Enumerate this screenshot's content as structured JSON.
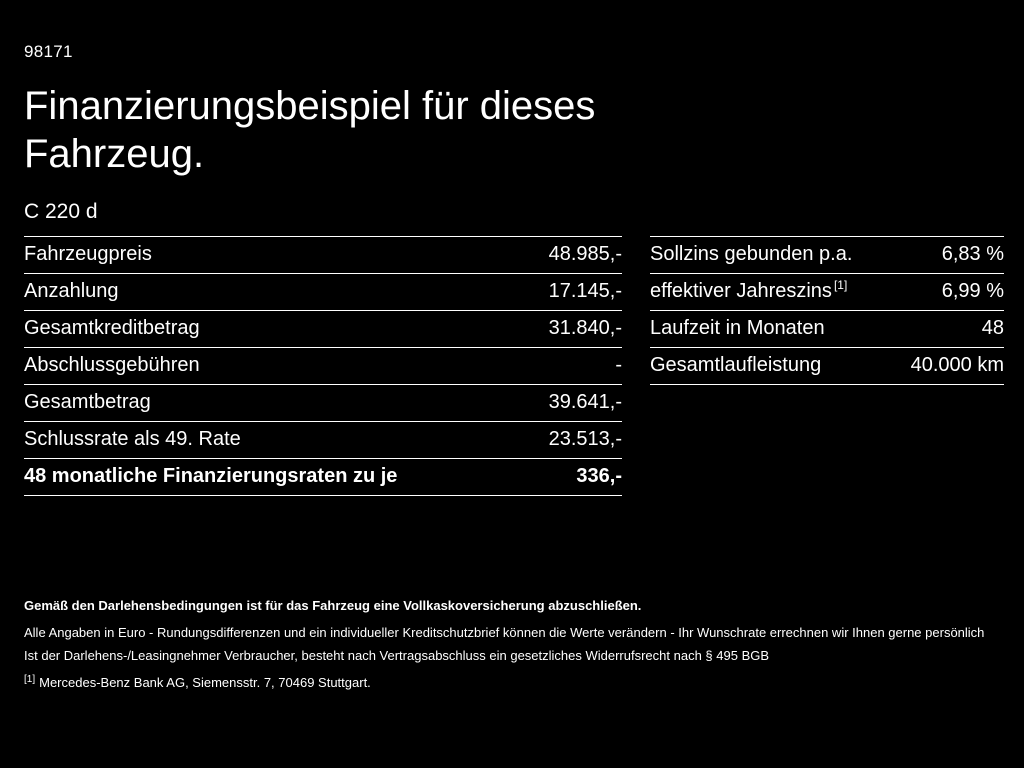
{
  "page": {
    "code": "98171",
    "title": "Finanzierungsbeispiel für dieses Fahrzeug.",
    "model": "C 220 d"
  },
  "colors": {
    "background": "#000000",
    "text": "#ffffff",
    "divider": "#ffffff"
  },
  "tables": {
    "left": {
      "rows": [
        {
          "label": "Fahrzeugpreis",
          "value": "48.985,-"
        },
        {
          "label": "Anzahlung",
          "value": "17.145,-"
        },
        {
          "label": "Gesamtkreditbetrag",
          "value": "31.840,-"
        },
        {
          "label": "Abschlussgebühren",
          "value": "-"
        },
        {
          "label": "Gesamtbetrag",
          "value": "39.641,-"
        },
        {
          "label": "Schlussrate als 49. Rate",
          "value": "23.513,-"
        },
        {
          "label": "48 monatliche Finanzierungsraten zu je",
          "value": "336,-"
        }
      ]
    },
    "right": {
      "rows": [
        {
          "label": "Sollzins gebunden p.a.",
          "sup": "",
          "value": "6,83 %"
        },
        {
          "label": "effektiver Jahreszins",
          "sup": "[1]",
          "value": "6,99 %"
        },
        {
          "label": "Laufzeit in Monaten",
          "sup": "",
          "value": "48"
        },
        {
          "label": "Gesamtlaufleistung",
          "sup": "",
          "value": "40.000 km"
        }
      ]
    }
  },
  "footer": {
    "line1": "Gemäß den Darlehensbedingungen ist für das Fahrzeug eine Vollkaskoversicherung abzuschließen.",
    "line2": "Alle Angaben in Euro - Rundungsdifferenzen und ein individueller Kreditschutzbrief können die Werte verändern - Ihr Wunschrate errechnen wir Ihnen gerne persönlich",
    "line3": "Ist der Darlehens-/Leasingnehmer Verbraucher, besteht nach Vertragsabschluss ein gesetzliches Widerrufsrecht nach § 495 BGB",
    "footnote_marker": "[1]",
    "footnote_text": "Mercedes-Benz Bank AG, Siemensstr. 7, 70469 Stuttgart."
  }
}
